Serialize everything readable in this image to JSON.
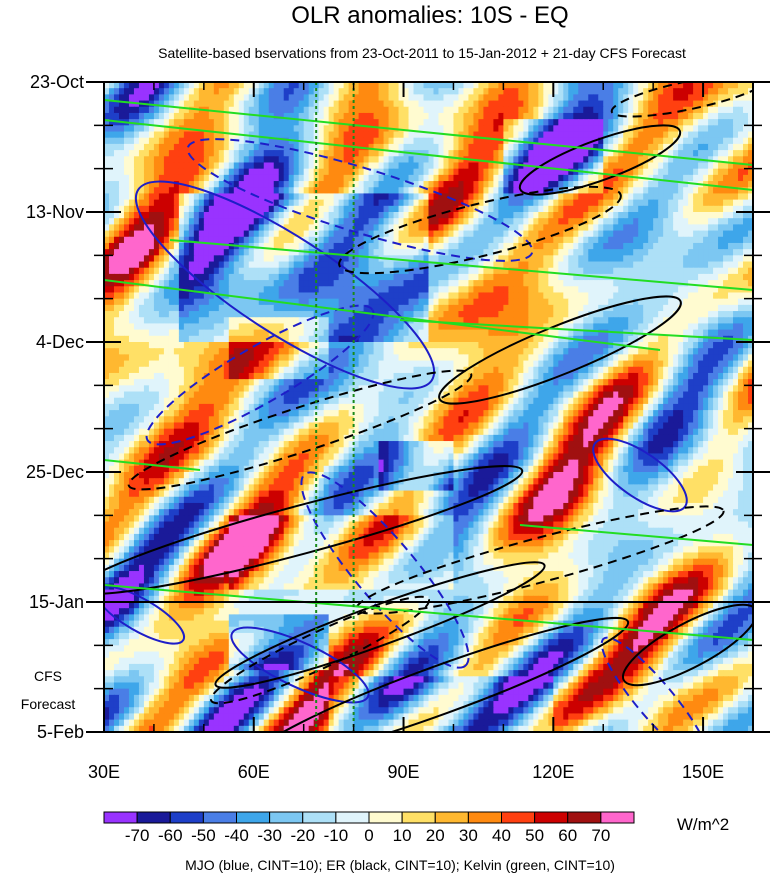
{
  "chart_data": {
    "type": "heatmap",
    "title": "OLR anomalies: 10S - EQ",
    "subtitle": "Satellite-based bservations from 23-Oct-2011 to 15-Jan-2012 + 21-day CFS Forecast",
    "x_axis": {
      "range": [
        30,
        160
      ],
      "ticks": [
        30,
        60,
        90,
        120,
        150
      ],
      "tick_labels": [
        "30E",
        "60E",
        "90E",
        "120E",
        "150E"
      ]
    },
    "y_axis": {
      "range_days": [
        0,
        105
      ],
      "tick_days": [
        0,
        21,
        42,
        63,
        84,
        105
      ],
      "tick_labels": [
        "23-Oct",
        "13-Nov",
        "4-Dec",
        "25-Dec",
        "15-Jan",
        "5-Feb"
      ]
    },
    "forecast_start_day": 84,
    "forecast_label": [
      "CFS",
      "Forecast"
    ],
    "reference_longitudes": [
      72.5,
      80
    ],
    "colorbar": {
      "levels": [
        -70,
        -60,
        -50,
        -40,
        -30,
        -20,
        -10,
        0,
        10,
        20,
        30,
        40,
        50,
        60,
        70
      ],
      "level_labels": [
        "-70",
        "-60",
        "-50",
        "-40",
        "-30",
        "-20",
        "-10",
        "0",
        "10",
        "20",
        "30",
        "40",
        "50",
        "60",
        "70"
      ],
      "colors": [
        "#9933ff",
        "#1a1a99",
        "#1e3fc8",
        "#4a7ee6",
        "#3ea6ea",
        "#7cc7f2",
        "#ade0f7",
        "#e0f4fb",
        "#fffbd0",
        "#ffe066",
        "#ffb830",
        "#ff8a10",
        "#ff4010",
        "#cc0000",
        "#a01010",
        "#ff66cc"
      ],
      "units": "W/m^2"
    },
    "footer": "MJO (blue, CINT=10); ER (black, CINT=10); Kelvin (green, CINT=10)",
    "series_colors": {
      "mjo": "#1e1ec8",
      "er": "#000000",
      "kelvin": "#22dd22"
    }
  }
}
